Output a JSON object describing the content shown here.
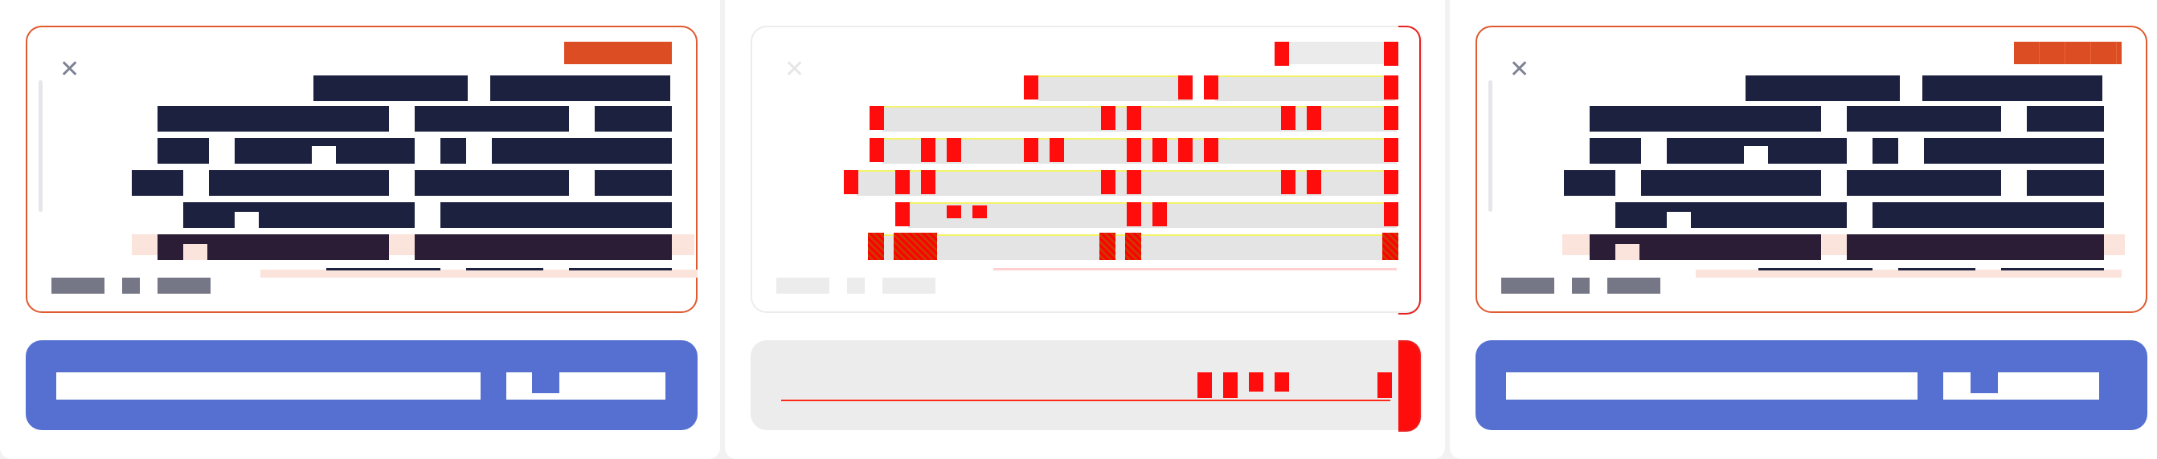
{
  "panels": [
    {
      "id": "original",
      "close_icon": "close-icon",
      "badge": "",
      "lines": [
        "",
        "",
        "",
        "",
        "",
        "",
        ""
      ],
      "footer": [
        "",
        "",
        ""
      ],
      "bar_field_left": "",
      "bar_field_right": ""
    },
    {
      "id": "overlay",
      "close_icon": "close-icon",
      "badge": "",
      "lines": [
        "",
        "",
        "",
        "",
        "",
        "",
        ""
      ],
      "footer": [
        "",
        "",
        ""
      ],
      "bar_field_left": "",
      "bar_field_right": ""
    },
    {
      "id": "rendered",
      "close_icon": "close-icon",
      "badge": "",
      "lines": [
        "",
        "",
        "",
        "",
        "",
        "",
        ""
      ],
      "footer": [
        "",
        "",
        ""
      ],
      "bar_field_left": "",
      "bar_field_right": ""
    }
  ],
  "colors": {
    "text_block": "#1d2140",
    "badge": "#dd4d24",
    "card_border": "#e05a2f",
    "bottom_bar": "#5570d0",
    "highlight": "#fbe4dc",
    "debug_mark": "#ff0d0d"
  }
}
